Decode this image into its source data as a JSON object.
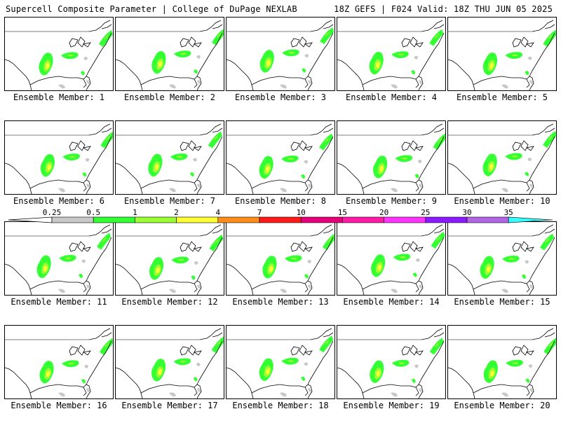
{
  "header": {
    "title_left": "Supercell Composite Parameter | College of DuPage NEXLAB",
    "title_right": "18Z GEFS | F024 Valid: 18Z THU JUN 05 2025"
  },
  "panels": [
    {
      "caption": "Ensemble Member: 1"
    },
    {
      "caption": "Ensemble Member: 2"
    },
    {
      "caption": "Ensemble Member: 3"
    },
    {
      "caption": "Ensemble Member: 4"
    },
    {
      "caption": "Ensemble Member: 5"
    },
    {
      "caption": "Ensemble Member: 6"
    },
    {
      "caption": "Ensemble Member: 7"
    },
    {
      "caption": "Ensemble Member: 8"
    },
    {
      "caption": "Ensemble Member: 9"
    },
    {
      "caption": "Ensemble Member: 10"
    },
    {
      "caption": "Ensemble Member: 11"
    },
    {
      "caption": "Ensemble Member: 12"
    },
    {
      "caption": "Ensemble Member: 13"
    },
    {
      "caption": "Ensemble Member: 14"
    },
    {
      "caption": "Ensemble Member: 15"
    },
    {
      "caption": "Ensemble Member: 16"
    },
    {
      "caption": "Ensemble Member: 17"
    },
    {
      "caption": "Ensemble Member: 18"
    },
    {
      "caption": "Ensemble Member: 19"
    },
    {
      "caption": "Ensemble Member: 20"
    }
  ],
  "colorbar": {
    "labels": [
      "0.25",
      "0.5",
      "1",
      "2",
      "4",
      "7",
      "10",
      "15",
      "20",
      "25",
      "30",
      "35"
    ],
    "colors": [
      "#c8c8c8",
      "#33ff33",
      "#99ff33",
      "#ffff33",
      "#ff8c1a",
      "#ff1a1a",
      "#e6007a",
      "#ff1aa8",
      "#ff33ff",
      "#8c1aff",
      "#b266e6",
      "#33ffff"
    ]
  },
  "map_colors": {
    "light": "#c8c8c8",
    "green": "#33ff33",
    "lime": "#99ff33",
    "yellow": "#ffff33",
    "orange": "#ff8c1a"
  }
}
